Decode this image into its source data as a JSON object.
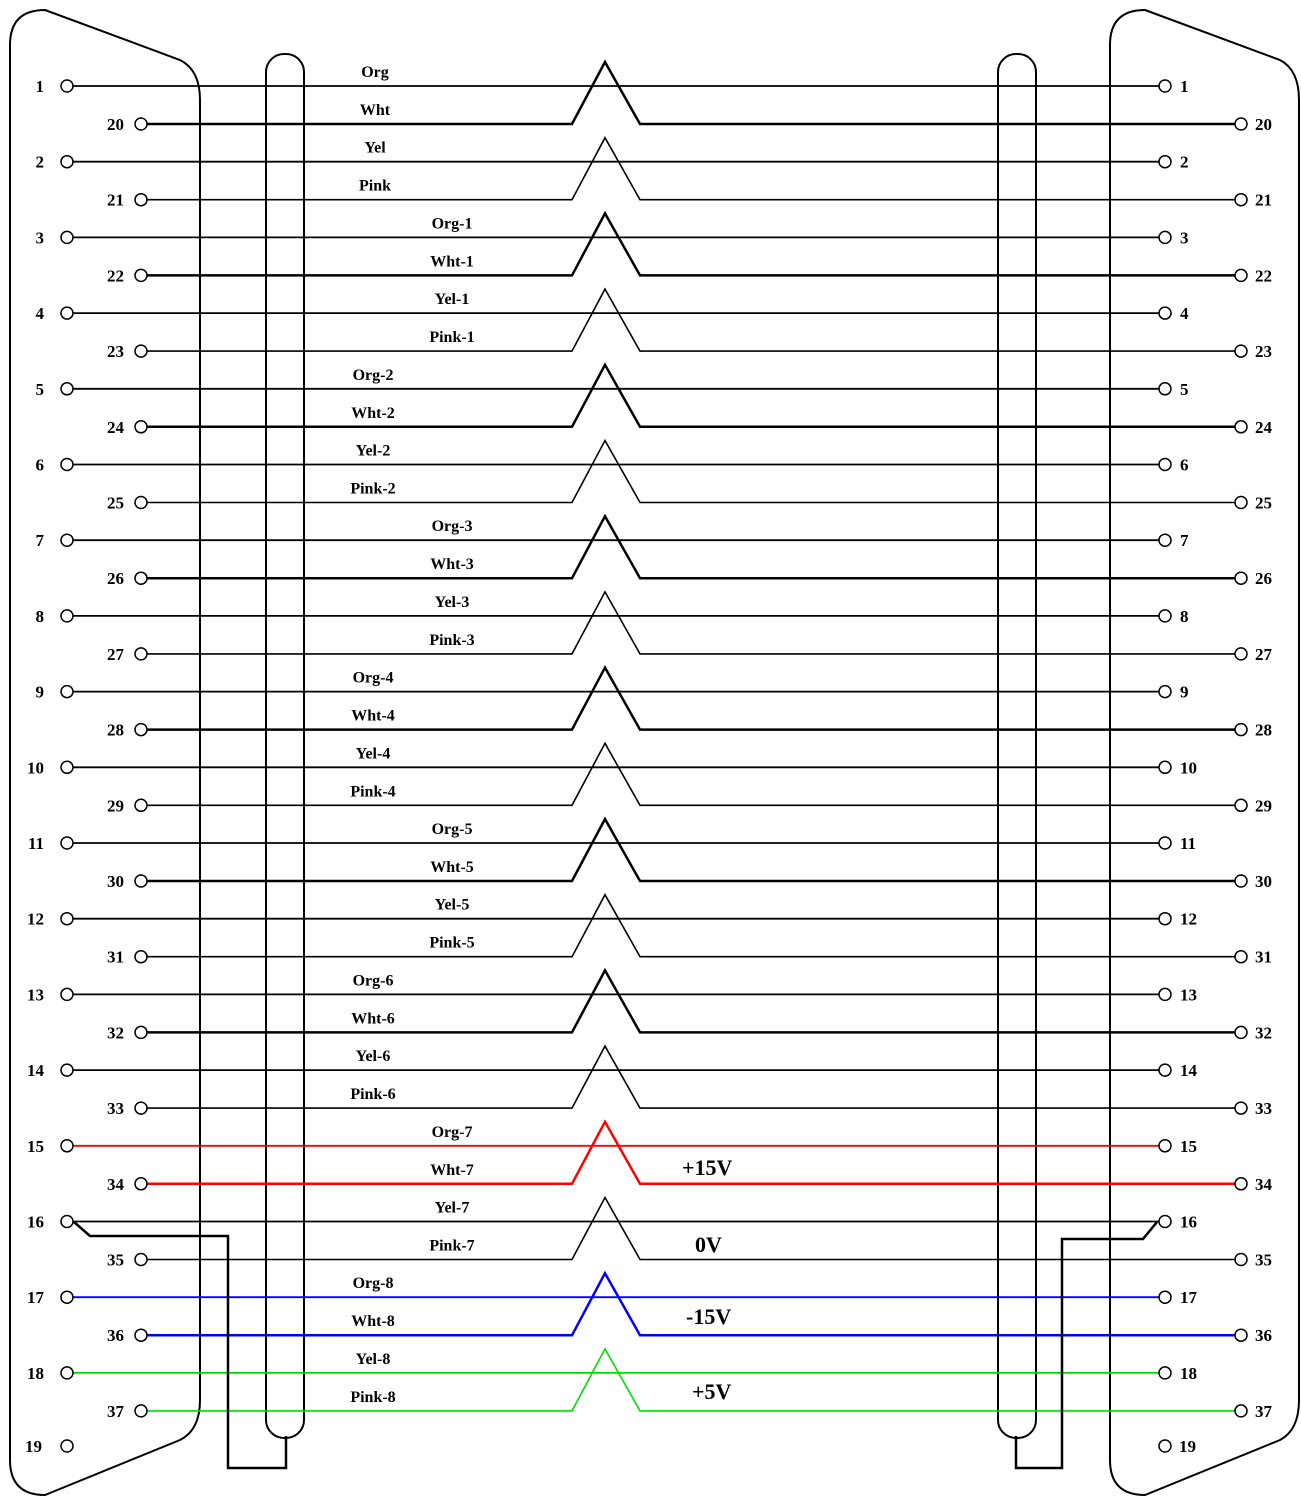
{
  "diagram": {
    "odd_wires": [
      {
        "left_pin": "1",
        "right_pin": "1",
        "label": "Org",
        "color": "#000000"
      },
      {
        "left_pin": "2",
        "right_pin": "2",
        "label": "Yel",
        "color": "#000000"
      },
      {
        "left_pin": "3",
        "right_pin": "3",
        "label": "Org-1",
        "color": "#000000"
      },
      {
        "left_pin": "4",
        "right_pin": "4",
        "label": "Yel-1",
        "color": "#000000"
      },
      {
        "left_pin": "5",
        "right_pin": "5",
        "label": "Org-2",
        "color": "#000000"
      },
      {
        "left_pin": "6",
        "right_pin": "6",
        "label": "Yel-2",
        "color": "#000000"
      },
      {
        "left_pin": "7",
        "right_pin": "7",
        "label": "Org-3",
        "color": "#000000"
      },
      {
        "left_pin": "8",
        "right_pin": "8",
        "label": "Yel-3",
        "color": "#000000"
      },
      {
        "left_pin": "9",
        "right_pin": "9",
        "label": "Org-4",
        "color": "#000000"
      },
      {
        "left_pin": "10",
        "right_pin": "10",
        "label": "Yel-4",
        "color": "#000000"
      },
      {
        "left_pin": "11",
        "right_pin": "11",
        "label": "Org-5",
        "color": "#000000"
      },
      {
        "left_pin": "12",
        "right_pin": "12",
        "label": "Yel-5",
        "color": "#000000"
      },
      {
        "left_pin": "13",
        "right_pin": "13",
        "label": "Org-6",
        "color": "#000000"
      },
      {
        "left_pin": "14",
        "right_pin": "14",
        "label": "Yel-6",
        "color": "#000000"
      },
      {
        "left_pin": "15",
        "right_pin": "15",
        "label": "Org-7",
        "color": "#ff0000"
      },
      {
        "left_pin": "16",
        "right_pin": "16",
        "label": "Yel-7",
        "color": "#000000"
      },
      {
        "left_pin": "17",
        "right_pin": "17",
        "label": "Org-8",
        "color": "#0000ff"
      },
      {
        "left_pin": "18",
        "right_pin": "18",
        "label": "Yel-8",
        "color": "#00dd00"
      }
    ],
    "even_wires": [
      {
        "left_pin": "20",
        "right_pin": "20",
        "label": "Wht",
        "color": "#000000"
      },
      {
        "left_pin": "21",
        "right_pin": "21",
        "label": "Pink",
        "color": "#000000"
      },
      {
        "left_pin": "22",
        "right_pin": "22",
        "label": "Wht-1",
        "color": "#000000"
      },
      {
        "left_pin": "23",
        "right_pin": "23",
        "label": "Pink-1",
        "color": "#000000"
      },
      {
        "left_pin": "24",
        "right_pin": "24",
        "label": "Wht-2",
        "color": "#000000"
      },
      {
        "left_pin": "25",
        "right_pin": "25",
        "label": "Pink-2",
        "color": "#000000"
      },
      {
        "left_pin": "26",
        "right_pin": "26",
        "label": "Wht-3",
        "color": "#000000"
      },
      {
        "left_pin": "27",
        "right_pin": "27",
        "label": "Pink-3",
        "color": "#000000"
      },
      {
        "left_pin": "28",
        "right_pin": "28",
        "label": "Wht-4",
        "color": "#000000"
      },
      {
        "left_pin": "29",
        "right_pin": "29",
        "label": "Pink-4",
        "color": "#000000"
      },
      {
        "left_pin": "30",
        "right_pin": "30",
        "label": "Wht-5",
        "color": "#000000"
      },
      {
        "left_pin": "31",
        "right_pin": "31",
        "label": "Pink-5",
        "color": "#000000"
      },
      {
        "left_pin": "32",
        "right_pin": "32",
        "label": "Wht-6",
        "color": "#000000"
      },
      {
        "left_pin": "33",
        "right_pin": "33",
        "label": "Pink-6",
        "color": "#000000"
      },
      {
        "left_pin": "34",
        "right_pin": "34",
        "label": "Wht-7",
        "color": "#ff0000"
      },
      {
        "left_pin": "35",
        "right_pin": "35",
        "label": "Pink-7",
        "color": "#000000"
      },
      {
        "left_pin": "36",
        "right_pin": "36",
        "label": "Wht-8",
        "color": "#0000ff"
      },
      {
        "left_pin": "37",
        "right_pin": "37",
        "label": "Pink-8",
        "color": "#00dd00"
      }
    ],
    "unwired_pin": {
      "left_pin": "19",
      "right_pin": "19"
    },
    "voltage_labels": [
      "+15V",
      "0V",
      "-15V",
      "+5V"
    ]
  }
}
